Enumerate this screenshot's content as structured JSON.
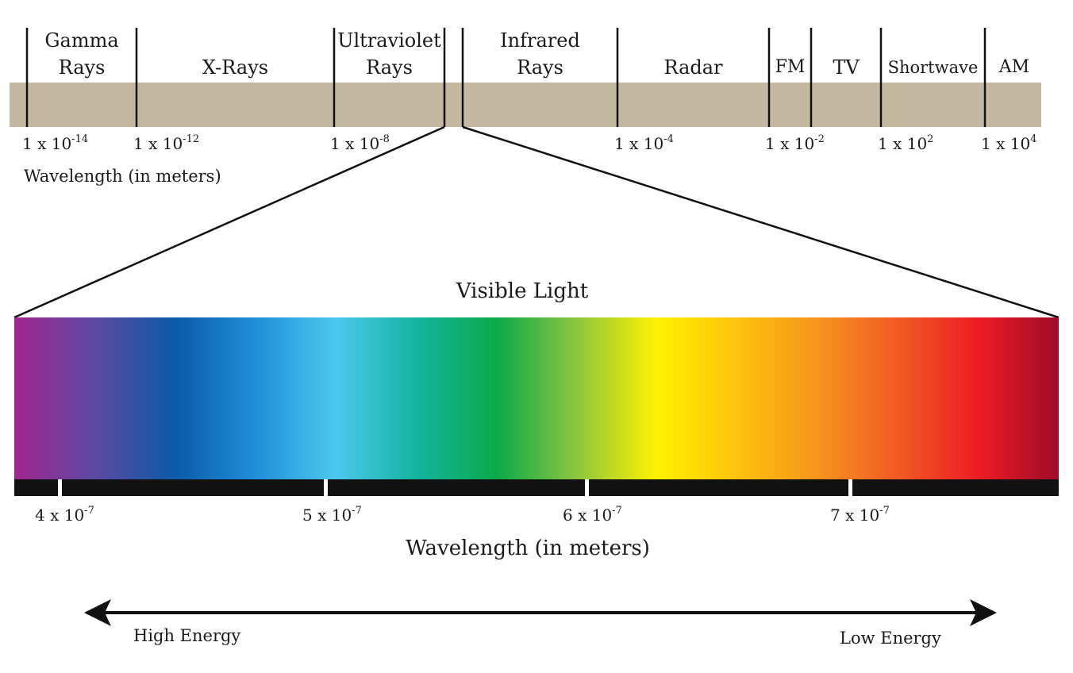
{
  "spectrum": {
    "bands": [
      {
        "id": "gamma",
        "lines": [
          "Gamma",
          "Rays"
        ]
      },
      {
        "id": "xray",
        "lines": [
          "X-Rays"
        ]
      },
      {
        "id": "uv",
        "lines": [
          "Ultraviolet",
          "Rays"
        ]
      },
      {
        "id": "ir",
        "lines": [
          "Infrared",
          "Rays"
        ]
      },
      {
        "id": "radar",
        "lines": [
          "Radar"
        ]
      },
      {
        "id": "fm",
        "lines": [
          "FM"
        ]
      },
      {
        "id": "tv",
        "lines": [
          "TV"
        ]
      },
      {
        "id": "shortwave",
        "lines": [
          "Shortwave"
        ]
      },
      {
        "id": "am",
        "lines": [
          "AM"
        ]
      }
    ],
    "scale_ticks": [
      {
        "base": "1 x 10",
        "exp": "-14"
      },
      {
        "base": "1 x 10",
        "exp": "-12"
      },
      {
        "base": "1 x 10",
        "exp": "-8"
      },
      {
        "base": "1 x 10",
        "exp": "-4"
      },
      {
        "base": "1 x 10",
        "exp": "-2"
      },
      {
        "base": "1 x 10",
        "exp": "2"
      },
      {
        "base": "1 x 10",
        "exp": "4"
      }
    ],
    "axis_title": "Wavelength (in meters)",
    "band_color": "#c4b8a0"
  },
  "visible": {
    "title": "Visible Light",
    "gradient_stops": [
      "#a0268f",
      "#5b4aa0",
      "#0b5aa8",
      "#1f8fd8",
      "#4cc8ee",
      "#14b4a0",
      "#0aaa4a",
      "#8cc63e",
      "#fff200",
      "#ffc20e",
      "#f7941d",
      "#f15a24",
      "#ed1c24",
      "#9e0b2a"
    ],
    "ticks": [
      {
        "base": "4 x 10",
        "exp": "-7"
      },
      {
        "base": "5 x 10",
        "exp": "-7"
      },
      {
        "base": "6 x 10",
        "exp": "-7"
      },
      {
        "base": "7 x 10",
        "exp": "-7"
      }
    ],
    "axis_title": "Wavelength (in meters)"
  },
  "energy": {
    "high": "High Energy",
    "low": "Low Energy"
  }
}
